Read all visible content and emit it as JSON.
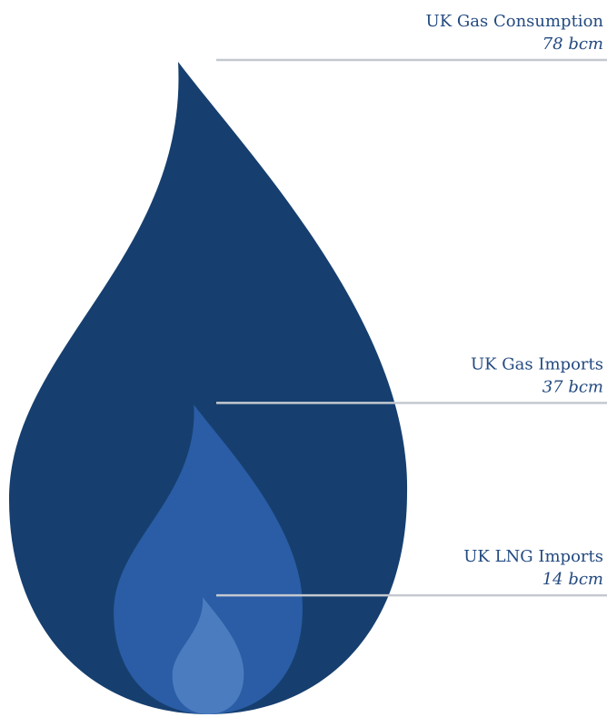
{
  "chart_data": {
    "type": "nested-flame",
    "categories": [
      "UK Gas Consumption",
      "UK Gas Imports",
      "UK LNG Imports"
    ],
    "values": [
      78,
      37,
      14
    ],
    "value_labels": [
      "78 bcm",
      "37 bcm",
      "14 bcm"
    ],
    "colors": [
      "#163f6f",
      "#2a5da6",
      "#4a7cbf"
    ]
  }
}
